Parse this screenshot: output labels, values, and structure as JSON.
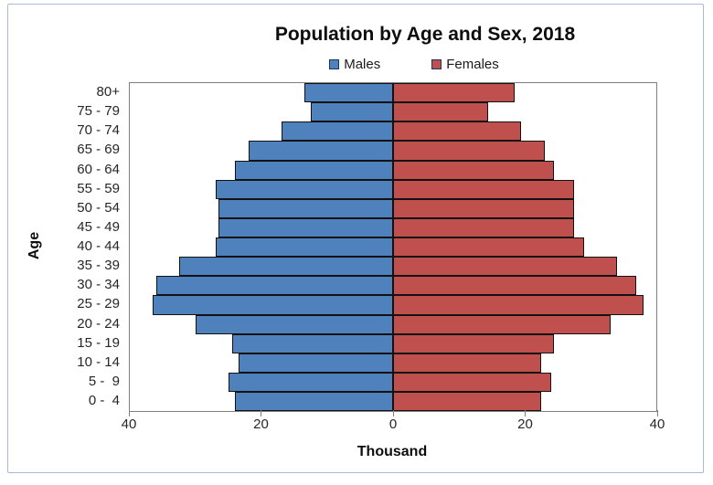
{
  "chart_data": {
    "type": "bar",
    "subtype": "population-pyramid",
    "title": "Population by Age and Sex, 2018",
    "xlabel": "Thousand",
    "ylabel": "Age",
    "categories": [
      "80+",
      "75 - 79",
      "70 - 74",
      "65 - 69",
      "60 - 64",
      "55 - 59",
      "50 - 54",
      "45 - 49",
      "40 - 44",
      "35 - 39",
      "30 - 34",
      "25 - 29",
      "20 - 24",
      "15 - 19",
      "10 - 14",
      "5 -  9",
      "0 -  4"
    ],
    "series": [
      {
        "name": "Males",
        "side": "left",
        "color": "#4f81bd",
        "values": [
          13.5,
          12.5,
          17,
          22,
          24,
          27,
          26.5,
          26.5,
          27,
          32.5,
          36,
          36.5,
          30,
          24.5,
          23.5,
          25,
          24
        ]
      },
      {
        "name": "Females",
        "side": "right",
        "color": "#c0504d",
        "values": [
          18.5,
          14.5,
          19.5,
          23,
          24.5,
          27.5,
          27.5,
          27.5,
          29,
          34,
          37,
          38,
          33,
          24.5,
          22.5,
          24,
          22.5
        ]
      }
    ],
    "x_max": 40,
    "x_tick_labels": [
      "40",
      "20",
      "0",
      "20",
      "40"
    ],
    "unit": "thousand",
    "grid": false,
    "legend_position": "top",
    "bar_border_color": "#121212",
    "plot_border_color": "#7f7f7f",
    "frame_border_color": "#a9b9d6"
  }
}
